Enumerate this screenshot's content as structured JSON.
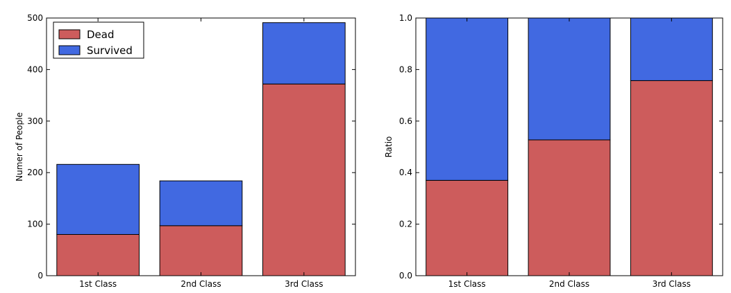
{
  "chart_data": [
    {
      "type": "bar",
      "stacked": true,
      "categories": [
        "1st Class",
        "2nd Class",
        "3rd Class"
      ],
      "series": [
        {
          "name": "Dead",
          "values": [
            80,
            97,
            372
          ],
          "color": "#cd5c5c"
        },
        {
          "name": "Survived",
          "values": [
            136,
            87,
            119
          ],
          "color": "#4169e1"
        }
      ],
      "title": "",
      "xlabel": "",
      "ylabel": "Numer of People",
      "ylim": [
        0,
        500
      ],
      "yticks": [
        0,
        100,
        200,
        300,
        400,
        500
      ],
      "ytick_labels": [
        "0",
        "100",
        "200",
        "300",
        "400",
        "500"
      ],
      "grid": false,
      "legend": "top-left"
    },
    {
      "type": "bar",
      "stacked": true,
      "categories": [
        "1st Class",
        "2nd Class",
        "3rd Class"
      ],
      "series": [
        {
          "name": "Dead",
          "values": [
            0.37,
            0.527,
            0.757
          ],
          "color": "#cd5c5c"
        },
        {
          "name": "Survived",
          "values": [
            0.63,
            0.473,
            0.243
          ],
          "color": "#4169e1"
        }
      ],
      "title": "",
      "xlabel": "",
      "ylabel": "Ratio",
      "ylim": [
        0,
        1.0
      ],
      "yticks": [
        0,
        0.2,
        0.4,
        0.6,
        0.8,
        1.0
      ],
      "ytick_labels": [
        "0.0",
        "0.2",
        "0.4",
        "0.6",
        "0.8",
        "1.0"
      ],
      "grid": false,
      "legend": "none"
    }
  ]
}
